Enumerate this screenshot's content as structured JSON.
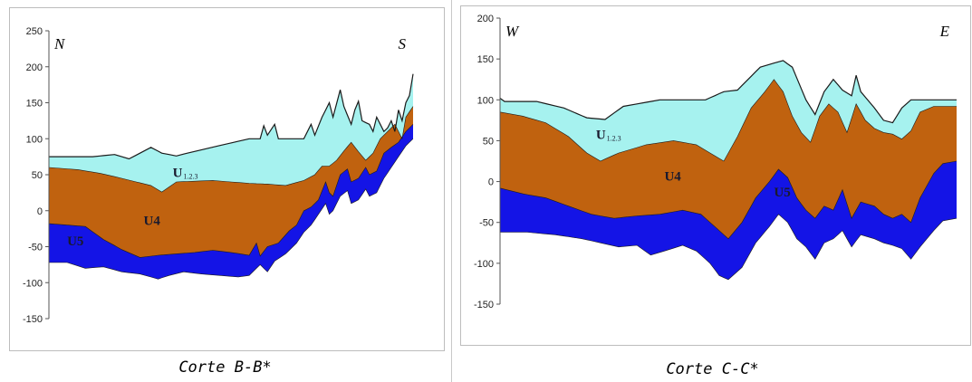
{
  "colors": {
    "top_unit": "#a6f2ef",
    "u4": "#c0620f",
    "u5": "#1414e6",
    "outline": "#1a1a1a",
    "frame": "#bdbdbd"
  },
  "chart_data": [
    {
      "type": "area",
      "caption": "Corte B-B*",
      "direction_left": "N",
      "direction_right": "S",
      "ylim": [
        -150,
        250
      ],
      "yticks": [
        250,
        200,
        150,
        100,
        50,
        0,
        -50,
        -100,
        -150
      ],
      "xlim": [
        0,
        100
      ],
      "unit_labels": [
        {
          "name": "U",
          "sub": "1.2.3",
          "x": 34,
          "y": 47
        },
        {
          "name": "U4",
          "x": 26,
          "y": -20
        },
        {
          "name": "U5",
          "x": 5,
          "y": -48
        }
      ],
      "series": [
        {
          "name": "surface",
          "points": [
            [
              0,
              75
            ],
            [
              12,
              75
            ],
            [
              18,
              78
            ],
            [
              22,
              72
            ],
            [
              28,
              88
            ],
            [
              31,
              80
            ],
            [
              35,
              76
            ],
            [
              38,
              80
            ],
            [
              55,
              100
            ],
            [
              58,
              100
            ],
            [
              59,
              118
            ],
            [
              60,
              105
            ],
            [
              62,
              120
            ],
            [
              63,
              100
            ],
            [
              70,
              100
            ],
            [
              72,
              120
            ],
            [
              73,
              105
            ],
            [
              75,
              130
            ],
            [
              77,
              150
            ],
            [
              78,
              130
            ],
            [
              80,
              168
            ],
            [
              81,
              145
            ],
            [
              83,
              120
            ],
            [
              84,
              140
            ],
            [
              85,
              152
            ],
            [
              86,
              125
            ],
            [
              88,
              120
            ],
            [
              89,
              110
            ],
            [
              90,
              130
            ],
            [
              92,
              110
            ],
            [
              93,
              115
            ],
            [
              94,
              125
            ],
            [
              95,
              110
            ],
            [
              96,
              140
            ],
            [
              97,
              125
            ],
            [
              98,
              150
            ],
            [
              99,
              160
            ],
            [
              100,
              190
            ]
          ]
        },
        {
          "name": "U4 top",
          "points": [
            [
              0,
              60
            ],
            [
              8,
              57
            ],
            [
              14,
              52
            ],
            [
              20,
              45
            ],
            [
              24,
              40
            ],
            [
              28,
              35
            ],
            [
              31,
              26
            ],
            [
              35,
              40
            ],
            [
              45,
              42
            ],
            [
              55,
              38
            ],
            [
              60,
              37
            ],
            [
              65,
              35
            ],
            [
              70,
              42
            ],
            [
              73,
              50
            ],
            [
              75,
              62
            ],
            [
              77,
              62
            ],
            [
              79,
              70
            ],
            [
              81,
              83
            ],
            [
              83,
              95
            ],
            [
              85,
              82
            ],
            [
              87,
              70
            ],
            [
              89,
              80
            ],
            [
              91,
              100
            ],
            [
              93,
              110
            ],
            [
              95,
              120
            ],
            [
              97,
              100
            ],
            [
              98,
              130
            ],
            [
              100,
              145
            ]
          ]
        },
        {
          "name": "U5 top",
          "points": [
            [
              0,
              -18
            ],
            [
              5,
              -20
            ],
            [
              10,
              -22
            ],
            [
              15,
              -40
            ],
            [
              20,
              -54
            ],
            [
              25,
              -65
            ],
            [
              30,
              -62
            ],
            [
              35,
              -60
            ],
            [
              40,
              -58
            ],
            [
              45,
              -55
            ],
            [
              50,
              -58
            ],
            [
              55,
              -62
            ],
            [
              57,
              -45
            ],
            [
              58,
              -63
            ],
            [
              60,
              -50
            ],
            [
              63,
              -45
            ],
            [
              66,
              -28
            ],
            [
              68,
              -20
            ],
            [
              70,
              0
            ],
            [
              72,
              5
            ],
            [
              74,
              15
            ],
            [
              76,
              40
            ],
            [
              77,
              25
            ],
            [
              78,
              20
            ],
            [
              79,
              35
            ],
            [
              80,
              50
            ],
            [
              82,
              58
            ],
            [
              83,
              40
            ],
            [
              85,
              45
            ],
            [
              87,
              60
            ],
            [
              88,
              50
            ],
            [
              90,
              55
            ],
            [
              92,
              80
            ],
            [
              94,
              88
            ],
            [
              96,
              95
            ],
            [
              98,
              110
            ],
            [
              100,
              120
            ]
          ]
        },
        {
          "name": "U5 base",
          "points": [
            [
              0,
              -72
            ],
            [
              5,
              -72
            ],
            [
              10,
              -80
            ],
            [
              15,
              -78
            ],
            [
              20,
              -85
            ],
            [
              25,
              -88
            ],
            [
              30,
              -95
            ],
            [
              33,
              -90
            ],
            [
              37,
              -85
            ],
            [
              42,
              -88
            ],
            [
              47,
              -90
            ],
            [
              52,
              -92
            ],
            [
              55,
              -90
            ],
            [
              58,
              -75
            ],
            [
              60,
              -85
            ],
            [
              62,
              -70
            ],
            [
              65,
              -60
            ],
            [
              68,
              -45
            ],
            [
              70,
              -30
            ],
            [
              72,
              -20
            ],
            [
              74,
              -5
            ],
            [
              76,
              10
            ],
            [
              77,
              -5
            ],
            [
              78,
              0
            ],
            [
              79,
              10
            ],
            [
              80,
              20
            ],
            [
              82,
              28
            ],
            [
              83,
              10
            ],
            [
              85,
              15
            ],
            [
              87,
              30
            ],
            [
              88,
              20
            ],
            [
              90,
              25
            ],
            [
              92,
              45
            ],
            [
              94,
              60
            ],
            [
              96,
              75
            ],
            [
              98,
              90
            ],
            [
              100,
              100
            ]
          ]
        }
      ]
    },
    {
      "type": "area",
      "caption": "Corte C-C*",
      "direction_left": "W",
      "direction_right": "E",
      "ylim": [
        -150,
        200
      ],
      "yticks": [
        200,
        150,
        100,
        50,
        0,
        -50,
        -100,
        -150
      ],
      "xlim": [
        0,
        100
      ],
      "unit_labels": [
        {
          "name": "U",
          "sub": "1.2.3",
          "x": 21,
          "y": 52
        },
        {
          "name": "U4",
          "x": 36,
          "y": 1
        },
        {
          "name": "U5",
          "x": 60,
          "y": -18
        }
      ],
      "series": [
        {
          "name": "surface",
          "points": [
            [
              0,
              102
            ],
            [
              1,
              98
            ],
            [
              8,
              98
            ],
            [
              14,
              90
            ],
            [
              19,
              78
            ],
            [
              23,
              76
            ],
            [
              27,
              92
            ],
            [
              30,
              95
            ],
            [
              35,
              100
            ],
            [
              45,
              100
            ],
            [
              49,
              110
            ],
            [
              52,
              112
            ],
            [
              57,
              140
            ],
            [
              60,
              145
            ],
            [
              62,
              148
            ],
            [
              64,
              140
            ],
            [
              67,
              100
            ],
            [
              69,
              82
            ],
            [
              71,
              110
            ],
            [
              73,
              125
            ],
            [
              75,
              112
            ],
            [
              77,
              105
            ],
            [
              78,
              130
            ],
            [
              79,
              110
            ],
            [
              82,
              90
            ],
            [
              84,
              75
            ],
            [
              86,
              72
            ],
            [
              88,
              90
            ],
            [
              90,
              100
            ],
            [
              100,
              100
            ]
          ]
        },
        {
          "name": "U4 top",
          "points": [
            [
              0,
              85
            ],
            [
              5,
              80
            ],
            [
              10,
              72
            ],
            [
              15,
              55
            ],
            [
              19,
              35
            ],
            [
              22,
              25
            ],
            [
              26,
              35
            ],
            [
              32,
              45
            ],
            [
              38,
              50
            ],
            [
              43,
              45
            ],
            [
              46,
              35
            ],
            [
              49,
              25
            ],
            [
              52,
              55
            ],
            [
              55,
              90
            ],
            [
              58,
              110
            ],
            [
              60,
              125
            ],
            [
              62,
              110
            ],
            [
              64,
              80
            ],
            [
              66,
              60
            ],
            [
              68,
              48
            ],
            [
              70,
              80
            ],
            [
              72,
              95
            ],
            [
              74,
              85
            ],
            [
              76,
              60
            ],
            [
              78,
              95
            ],
            [
              80,
              75
            ],
            [
              82,
              65
            ],
            [
              84,
              60
            ],
            [
              86,
              58
            ],
            [
              88,
              52
            ],
            [
              90,
              62
            ],
            [
              92,
              85
            ],
            [
              95,
              92
            ],
            [
              100,
              92
            ]
          ]
        },
        {
          "name": "U5 top",
          "points": [
            [
              0,
              -8
            ],
            [
              5,
              -15
            ],
            [
              10,
              -20
            ],
            [
              15,
              -30
            ],
            [
              20,
              -40
            ],
            [
              25,
              -45
            ],
            [
              30,
              -42
            ],
            [
              35,
              -40
            ],
            [
              40,
              -35
            ],
            [
              44,
              -40
            ],
            [
              47,
              -55
            ],
            [
              50,
              -70
            ],
            [
              53,
              -50
            ],
            [
              56,
              -20
            ],
            [
              59,
              0
            ],
            [
              61,
              15
            ],
            [
              63,
              5
            ],
            [
              65,
              -20
            ],
            [
              67,
              -35
            ],
            [
              69,
              -45
            ],
            [
              71,
              -30
            ],
            [
              73,
              -35
            ],
            [
              75,
              -10
            ],
            [
              77,
              -45
            ],
            [
              79,
              -25
            ],
            [
              82,
              -30
            ],
            [
              84,
              -40
            ],
            [
              86,
              -45
            ],
            [
              88,
              -40
            ],
            [
              90,
              -50
            ],
            [
              92,
              -20
            ],
            [
              95,
              10
            ],
            [
              97,
              22
            ],
            [
              100,
              25
            ]
          ]
        },
        {
          "name": "U5 base",
          "points": [
            [
              0,
              -62
            ],
            [
              6,
              -62
            ],
            [
              12,
              -65
            ],
            [
              18,
              -70
            ],
            [
              22,
              -75
            ],
            [
              26,
              -80
            ],
            [
              30,
              -78
            ],
            [
              33,
              -90
            ],
            [
              36,
              -85
            ],
            [
              40,
              -78
            ],
            [
              43,
              -85
            ],
            [
              46,
              -100
            ],
            [
              48,
              -115
            ],
            [
              50,
              -120
            ],
            [
              53,
              -105
            ],
            [
              56,
              -75
            ],
            [
              59,
              -55
            ],
            [
              61,
              -40
            ],
            [
              63,
              -50
            ],
            [
              65,
              -70
            ],
            [
              67,
              -80
            ],
            [
              69,
              -95
            ],
            [
              71,
              -75
            ],
            [
              73,
              -70
            ],
            [
              75,
              -60
            ],
            [
              77,
              -80
            ],
            [
              79,
              -65
            ],
            [
              82,
              -70
            ],
            [
              84,
              -75
            ],
            [
              86,
              -78
            ],
            [
              88,
              -82
            ],
            [
              90,
              -95
            ],
            [
              92,
              -80
            ],
            [
              95,
              -60
            ],
            [
              97,
              -48
            ],
            [
              100,
              -45
            ]
          ]
        }
      ]
    }
  ]
}
